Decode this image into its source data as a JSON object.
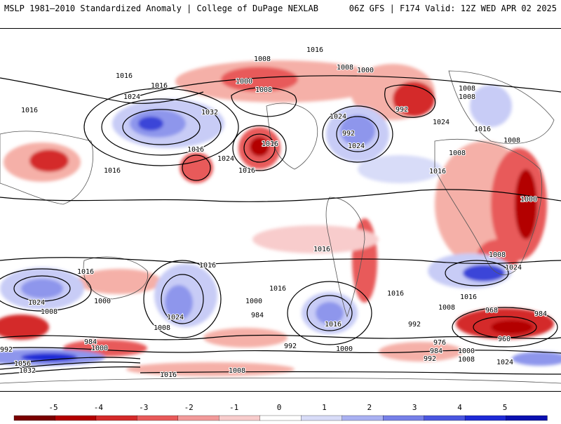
{
  "header": {
    "title_left": "MSLP 1981–2010 Standardized Anomaly | College of DuPage NEXLAB",
    "title_right": "06Z GFS | F174 Valid: 12Z WED APR 02 2025"
  },
  "colorbar": {
    "labels": [
      "-5",
      "-4",
      "-3",
      "-2",
      "-1",
      "0",
      "1",
      "2",
      "3",
      "4",
      "5"
    ],
    "colors": [
      "#7a0000",
      "#b30000",
      "#d42a2a",
      "#e85a5a",
      "#f29a9a",
      "#f8cccc",
      "#ffffff",
      "#d8dcf8",
      "#a9b1f2",
      "#7680e8",
      "#4a56e0",
      "#1e2ad6",
      "#0a10b0"
    ]
  },
  "map": {
    "isobar_labels": [
      "1016",
      "1008",
      "1000",
      "1008",
      "1008",
      "1000",
      "1016",
      "1024",
      "1016",
      "1016",
      "1032",
      "1016",
      "1024",
      "1016",
      "992",
      "1008",
      "1008",
      "1016",
      "1024",
      "1008",
      "1016",
      "1016",
      "1024",
      "1016",
      "1008",
      "1024",
      "1000",
      "992",
      "1016",
      "1016",
      "1024",
      "1024",
      "1008",
      "1000",
      "984",
      "1016",
      "1008",
      "984",
      "1016",
      "1000",
      "1024",
      "1008",
      "992",
      "968",
      "984",
      "960",
      "1016",
      "992",
      "1000",
      "1000",
      "1008",
      "1016",
      "1016",
      "992",
      "984",
      "976",
      "1000",
      "992",
      "1008",
      "1024",
      "1056",
      "1032",
      "1016",
      "1008",
      "1000",
      "1016"
    ],
    "colors": {
      "warm_strong": "#d42a2a",
      "warm_mid": "#e85a5a",
      "warm_light": "#f5b0a8",
      "cool_light": "#c8ccf6",
      "cool_mid": "#8e96ec",
      "cool_strong": "#3a44d8"
    }
  }
}
